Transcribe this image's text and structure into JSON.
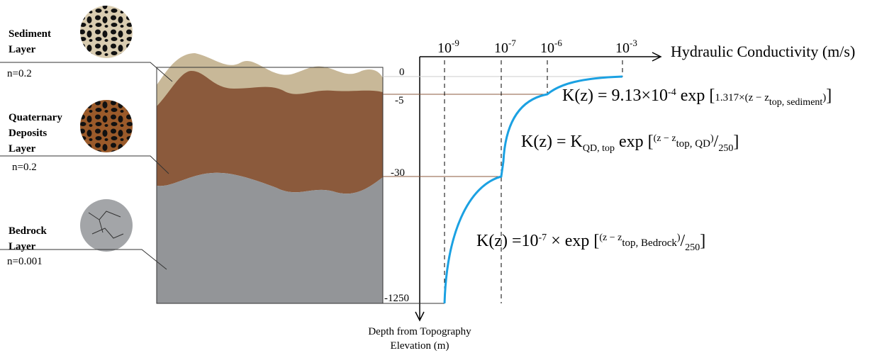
{
  "layers": [
    {
      "name": [
        "Sediment",
        "Layer"
      ],
      "porosity": "n=0.2"
    },
    {
      "name": [
        "Quaternary",
        "Deposits",
        "Layer"
      ],
      "porosity": "n=0.2"
    },
    {
      "name": [
        "Bedrock",
        "Layer"
      ],
      "porosity": "n=0.001"
    }
  ],
  "depth_axis": {
    "label": [
      "Depth from Topography",
      "Elevation (m)"
    ],
    "ticks": [
      "0",
      "-5",
      "-30",
      "-1250"
    ]
  },
  "k_axis": {
    "label": "Hydraulic Conductivity (m/s)",
    "ticks": [
      {
        "base": "10",
        "exp": "-9"
      },
      {
        "base": "10",
        "exp": "-7"
      },
      {
        "base": "10",
        "exp": "-6"
      },
      {
        "base": "10",
        "exp": "-3"
      }
    ]
  },
  "equations": [
    {
      "segments": [
        {
          "text": "K(z) = 9.13×10",
          "style": "normal"
        },
        {
          "text": "-4",
          "style": "sup"
        },
        {
          "text": " exp [",
          "style": "normal"
        },
        {
          "text": "1.317×(z − z",
          "style": "small"
        },
        {
          "text": "top, sediment",
          "style": "sub"
        },
        {
          "text": ")",
          "style": "small"
        },
        {
          "text": "]",
          "style": "normal"
        }
      ]
    },
    {
      "segments": [
        {
          "text": "K(z) = K",
          "style": "normal"
        },
        {
          "text": "QD, top",
          "style": "sub"
        },
        {
          "text": " exp [",
          "style": "normal"
        },
        {
          "text": "(z − z",
          "style": "sup"
        },
        {
          "text": "top, QD",
          "style": "small"
        },
        {
          "text": ")",
          "style": "sup"
        },
        {
          "text": "/",
          "style": "normal"
        },
        {
          "text": "250",
          "style": "sub"
        },
        {
          "text": "]",
          "style": "normal"
        }
      ]
    },
    {
      "segments": [
        {
          "text": "K(z) =10",
          "style": "normal"
        },
        {
          "text": "-7",
          "style": "sup"
        },
        {
          "text": " × exp [",
          "style": "normal"
        },
        {
          "text": "(z − z",
          "style": "sup"
        },
        {
          "text": "top, Bedrock",
          "style": "small"
        },
        {
          "text": ")",
          "style": "sup"
        },
        {
          "text": "/",
          "style": "normal"
        },
        {
          "text": "250",
          "style": "sub"
        },
        {
          "text": "]",
          "style": "normal"
        }
      ]
    }
  ]
}
